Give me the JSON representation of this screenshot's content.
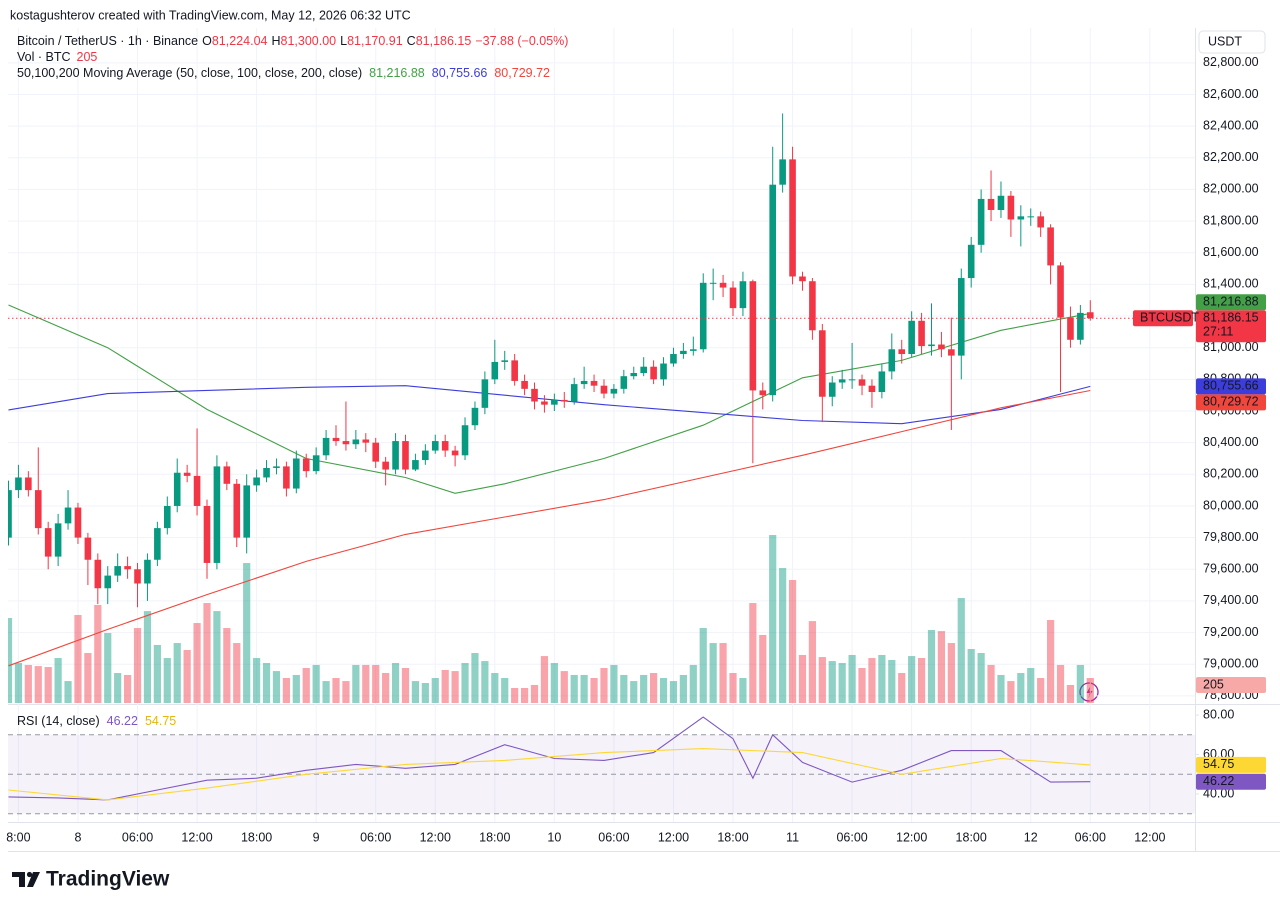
{
  "header": {
    "credit": "kostagushterov created with TradingView.com, May 12, 2026 06:32 UTC"
  },
  "footer": {
    "brand": "TradingView"
  },
  "chart_data": [
    {
      "type": "candlestick",
      "title": "Bitcoin / TetherUS · 1h · Binance",
      "ohlc_letters": [
        "O",
        "H",
        "L",
        "C"
      ],
      "ohlc_labels": [
        "81,224.04",
        "81,300.00",
        "81,170.91",
        "81,186.15"
      ],
      "change": "−37.88 (−0.05%)",
      "volume_title": "Vol · BTC",
      "ma_title": "50,100,200 Moving Average (50, close, 100, close, 200, close)",
      "currency": "USDT",
      "symbol": "BTCUSDT",
      "countdown": "27:11",
      "up_color": "#089981",
      "down_color": "#f23645",
      "grid": true,
      "xlim": [
        -0.05,
        119.55
      ],
      "ylim": [
        78755,
        83020
      ],
      "yticks": [
        {
          "value": 78800,
          "label": "78,800.00"
        },
        {
          "value": 79000,
          "label": "79,000.00"
        },
        {
          "value": 79200,
          "label": "79,200.00"
        },
        {
          "value": 79400,
          "label": "79,400.00"
        },
        {
          "value": 79600,
          "label": "79,600.00"
        },
        {
          "value": 79800,
          "label": "79,800.00"
        },
        {
          "value": 80000,
          "label": "80,000.00"
        },
        {
          "value": 80200,
          "label": "80,200.00"
        },
        {
          "value": 80400,
          "label": "80,400.00"
        },
        {
          "value": 80600,
          "label": "80,600.00"
        },
        {
          "value": 80800,
          "label": "80,800.00"
        },
        {
          "value": 81000,
          "label": "81,000.00"
        },
        {
          "value": 81200,
          "label": "81,200.00"
        },
        {
          "value": 81400,
          "label": "81,400.00"
        },
        {
          "value": 81600,
          "label": "81,600.00"
        },
        {
          "value": 81800,
          "label": "81,800.00"
        },
        {
          "value": 82000,
          "label": "82,000.00"
        },
        {
          "value": 82200,
          "label": "82,200.00"
        },
        {
          "value": 82400,
          "label": "82,400.00"
        },
        {
          "value": 82600,
          "label": "82,600.00"
        },
        {
          "value": 82800,
          "label": "82,800.00"
        }
      ],
      "xticks": [
        {
          "value": 1,
          "label": "8:00"
        },
        {
          "value": 7,
          "label": "8"
        },
        {
          "value": 13,
          "label": "06:00"
        },
        {
          "value": 19,
          "label": "12:00"
        },
        {
          "value": 25,
          "label": "18:00"
        },
        {
          "value": 31,
          "label": "9"
        },
        {
          "value": 37,
          "label": "06:00"
        },
        {
          "value": 43,
          "label": "12:00"
        },
        {
          "value": 49,
          "label": "18:00"
        },
        {
          "value": 55,
          "label": "10"
        },
        {
          "value": 61,
          "label": "06:00"
        },
        {
          "value": 67,
          "label": "12:00"
        },
        {
          "value": 73,
          "label": "18:00"
        },
        {
          "value": 79,
          "label": "11"
        },
        {
          "value": 85,
          "label": "06:00"
        },
        {
          "value": 91,
          "label": "12:00"
        },
        {
          "value": 97,
          "label": "18:00"
        },
        {
          "value": 103,
          "label": "12"
        },
        {
          "value": 109,
          "label": "06:00"
        },
        {
          "value": 115,
          "label": "12:00"
        }
      ],
      "open": [
        79800,
        80100,
        80180,
        80100,
        79860,
        79680,
        79890,
        79990,
        79800,
        79660,
        79480,
        79560,
        79620,
        79600,
        79510,
        79660,
        79860,
        80000,
        80210,
        80190,
        80000,
        79640,
        80250,
        80140,
        79800,
        80130,
        80180,
        80240,
        80250,
        80110,
        80300,
        80220,
        80320,
        80430,
        80410,
        80390,
        80420,
        80400,
        80280,
        80230,
        80410,
        80230,
        80290,
        80350,
        80410,
        80350,
        80320,
        80510,
        80620,
        80800,
        80910,
        80920,
        80790,
        80740,
        80660,
        80640,
        80670,
        80660,
        80770,
        80790,
        80760,
        80710,
        80740,
        80820,
        80840,
        80880,
        80800,
        80900,
        80960,
        80980,
        80990,
        81410,
        81410,
        81380,
        81250,
        81420,
        80730,
        80700,
        82030,
        82190,
        81450,
        81420,
        81110,
        80690,
        80780,
        80800,
        80800,
        80760,
        80720,
        80850,
        80990,
        80960,
        81170,
        81010,
        81020,
        80990,
        80950,
        81440,
        81650,
        81940,
        81870,
        81960,
        81810,
        81830,
        81830,
        81760,
        81520,
        81190,
        81050,
        81224.04
      ],
      "high": [
        80160,
        80260,
        80220,
        80370,
        79900,
        79950,
        80100,
        80020,
        79830,
        79700,
        79620,
        79700,
        79680,
        79640,
        79700,
        79900,
        80060,
        80300,
        80260,
        80490,
        80040,
        80320,
        80280,
        80170,
        80200,
        80230,
        80290,
        80300,
        80280,
        80350,
        80330,
        80370,
        80480,
        80510,
        80660,
        80480,
        80460,
        80430,
        80310,
        80460,
        80450,
        80330,
        80390,
        80450,
        80450,
        80380,
        80560,
        80660,
        80850,
        81050,
        80980,
        80960,
        80830,
        80780,
        80700,
        80710,
        80720,
        80810,
        80880,
        80830,
        80800,
        80770,
        80860,
        80880,
        80940,
        80920,
        80940,
        81000,
        81030,
        81070,
        81470,
        81500,
        81460,
        81420,
        81480,
        81430,
        80780,
        82270,
        82480,
        82270,
        81480,
        81440,
        81150,
        80820,
        80860,
        81030,
        80830,
        80800,
        80900,
        81090,
        81050,
        81230,
        81220,
        81280,
        81100,
        81190,
        81500,
        81700,
        82000,
        82120,
        82050,
        81990,
        81900,
        81880,
        81860,
        81780,
        81540,
        81260,
        81270,
        81300
      ],
      "low": [
        79750,
        80050,
        80060,
        79820,
        79600,
        79620,
        79850,
        79760,
        79500,
        79380,
        79380,
        79520,
        79540,
        79360,
        79400,
        79620,
        79820,
        79960,
        80150,
        79940,
        79540,
        79600,
        80100,
        79740,
        79700,
        80090,
        80150,
        80200,
        80060,
        80080,
        80180,
        80200,
        80290,
        80380,
        80350,
        80360,
        80340,
        80240,
        80130,
        80200,
        80200,
        80220,
        80260,
        80330,
        80310,
        80250,
        80290,
        80480,
        80580,
        80770,
        80860,
        80760,
        80700,
        80610,
        80590,
        80600,
        80620,
        80640,
        80740,
        80720,
        80680,
        80680,
        80710,
        80800,
        80820,
        80770,
        80760,
        80880,
        80930,
        80950,
        80970,
        81300,
        81320,
        81200,
        81200,
        80270,
        80610,
        80660,
        81980,
        81400,
        81360,
        81050,
        80530,
        80630,
        80740,
        80740,
        80700,
        80620,
        80680,
        80800,
        80900,
        80940,
        80960,
        80950,
        80940,
        80480,
        80800,
        81380,
        81600,
        81800,
        81820,
        81700,
        81640,
        81770,
        81700,
        81400,
        80720,
        81000,
        81020,
        81170.91
      ],
      "close": [
        80100,
        80180,
        80100,
        79860,
        79680,
        79890,
        79990,
        79800,
        79660,
        79480,
        79560,
        79620,
        79600,
        79510,
        79660,
        79860,
        80000,
        80210,
        80190,
        80000,
        79640,
        80250,
        80140,
        79800,
        80130,
        80180,
        80240,
        80250,
        80110,
        80300,
        80220,
        80320,
        80430,
        80410,
        80390,
        80420,
        80400,
        80280,
        80230,
        80410,
        80230,
        80290,
        80350,
        80410,
        80350,
        80320,
        80510,
        80620,
        80800,
        80910,
        80920,
        80790,
        80740,
        80660,
        80640,
        80670,
        80660,
        80770,
        80790,
        80760,
        80710,
        80740,
        80820,
        80840,
        80880,
        80800,
        80900,
        80960,
        80980,
        80990,
        81410,
        81410,
        81380,
        81250,
        81420,
        80730,
        80700,
        82030,
        82190,
        81450,
        81420,
        81110,
        80690,
        80780,
        80800,
        80800,
        80760,
        80720,
        80850,
        80990,
        80960,
        81170,
        81010,
        81020,
        80990,
        80950,
        81440,
        81650,
        81940,
        81870,
        81960,
        81810,
        81830,
        81830,
        81760,
        81520,
        81190,
        81050,
        81220,
        81186.15
      ],
      "volume": [
        697,
        328,
        312,
        303,
        295,
        369,
        180,
        722,
        410,
        804,
        574,
        246,
        230,
        615,
        754,
        476,
        369,
        492,
        435,
        656,
        820,
        754,
        615,
        492,
        1148,
        369,
        328,
        262,
        205,
        230,
        287,
        312,
        180,
        205,
        180,
        312,
        312,
        312,
        246,
        328,
        287,
        180,
        164,
        205,
        271,
        262,
        328,
        410,
        344,
        246,
        205,
        123,
        123,
        148,
        385,
        328,
        262,
        230,
        230,
        205,
        287,
        312,
        230,
        180,
        230,
        246,
        205,
        180,
        230,
        312,
        615,
        492,
        492,
        246,
        205,
        820,
        558,
        1378,
        1107,
        1009,
        394,
        672,
        377,
        344,
        328,
        394,
        287,
        369,
        394,
        353,
        246,
        385,
        369,
        599,
        590,
        492,
        861,
        443,
        410,
        312,
        230,
        180,
        246,
        287,
        205,
        681,
        312,
        148,
        312,
        205
      ],
      "moving_averages": [
        {
          "color": "#43a047",
          "x": [
            0,
            10,
            20,
            30,
            40,
            45,
            50,
            60,
            70,
            80,
            90,
            100,
            109
          ],
          "values": [
            81270,
            81000,
            80610,
            80300,
            80180,
            80080,
            80140,
            80300,
            80510,
            80810,
            80920,
            81110,
            81216.88
          ],
          "value_label": "81,216.88"
        },
        {
          "color": "#3d3ddb",
          "x": [
            0,
            10,
            20,
            30,
            40,
            50,
            60,
            70,
            80,
            90,
            100,
            109
          ],
          "values": [
            80607,
            80710,
            80730,
            80750,
            80760,
            80700,
            80640,
            80590,
            80540,
            80520,
            80610,
            80755.66
          ],
          "value_label": "80,755.66"
        },
        {
          "color": "#f0463c",
          "x": [
            0,
            10,
            20,
            30,
            40,
            50,
            60,
            70,
            80,
            90,
            100,
            109
          ],
          "values": [
            78990,
            79220,
            79440,
            79650,
            79820,
            79930,
            80040,
            80180,
            80320,
            80470,
            80620,
            80729.72
          ],
          "value_label": "80,729.72"
        }
      ]
    },
    {
      "type": "line",
      "title": "RSI (14, close)",
      "ylim": [
        25.8,
        84.6
      ],
      "yticks": [
        {
          "value": 80,
          "label": "80.00"
        },
        {
          "value": 60,
          "label": "60.00"
        },
        {
          "value": 40,
          "label": "40.00"
        }
      ],
      "levels": [
        70,
        50,
        30
      ],
      "band_color": "#7e57c2",
      "series": [
        {
          "color": "#7e57c2",
          "x": [
            0,
            5,
            10,
            15,
            20,
            25,
            30,
            35,
            40,
            45,
            50,
            55,
            60,
            65,
            70,
            73,
            75,
            77,
            80,
            85,
            90,
            95,
            100,
            105,
            109
          ],
          "values": [
            38.5,
            38,
            37,
            42,
            47,
            48,
            52,
            55,
            53,
            55,
            65,
            58,
            57,
            61,
            79,
            68,
            48,
            70,
            56,
            46,
            52,
            62,
            62,
            46,
            46.22
          ]
        },
        {
          "color": "#fdd835",
          "x": [
            0,
            10,
            20,
            30,
            40,
            50,
            60,
            70,
            80,
            90,
            100,
            109
          ],
          "values": [
            42,
            37,
            43,
            50,
            55,
            57,
            61,
            63,
            61,
            50,
            58,
            54.75
          ]
        }
      ]
    }
  ]
}
